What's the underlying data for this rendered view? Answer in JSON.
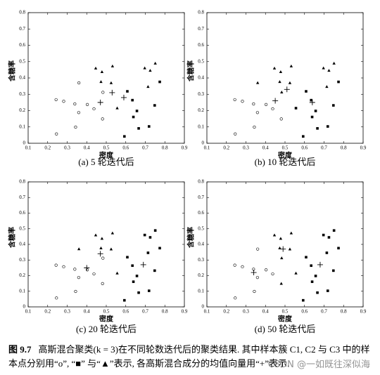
{
  "chart_data": [
    {
      "type": "scatter",
      "caption": "(a) 5 轮迭代后",
      "xlabel": "密度",
      "ylabel": "含糖率",
      "color": "#000000",
      "xlim": [
        0.1,
        0.9
      ],
      "ylim": [
        0,
        0.8
      ],
      "xticks": [
        0.1,
        0.2,
        0.3,
        0.4,
        0.5,
        0.6,
        0.7,
        0.8,
        0.9
      ],
      "yticks": [
        0,
        0.1,
        0.2,
        0.3,
        0.4,
        0.5,
        0.6,
        0.7,
        0.8
      ],
      "series": [
        {
          "marker": "circle",
          "x": [
            0.243,
            0.282,
            0.245,
            0.343,
            0.339,
            0.359,
            0.36,
            0.403,
            0.437,
            0.481,
            0.483
          ],
          "values": [
            0.267,
            0.257,
            0.057,
            0.099,
            0.241,
            0.188,
            0.37,
            0.237,
            0.211,
            0.149,
            0.312
          ]
        },
        {
          "marker": "square",
          "x": [
            0.634,
            0.608,
            0.639,
            0.657,
            0.666,
            0.719,
            0.593,
            0.748,
            0.774
          ],
          "values": [
            0.264,
            0.318,
            0.161,
            0.198,
            0.091,
            0.103,
            0.042,
            0.232,
            0.376
          ]
        },
        {
          "marker": "triangle",
          "x": [
            0.446,
            0.473,
            0.478,
            0.525,
            0.532,
            0.556,
            0.697,
            0.751,
            0.725,
            0.714
          ],
          "values": [
            0.459,
            0.376,
            0.437,
            0.369,
            0.472,
            0.215,
            0.46,
            0.489,
            0.445,
            0.346
          ]
        },
        {
          "marker": "plus",
          "x": [
            0.47,
            0.53,
            0.59
          ],
          "values": [
            0.25,
            0.31,
            0.28
          ]
        }
      ]
    },
    {
      "type": "scatter",
      "caption": "(b) 10 轮迭代后",
      "xlabel": "密度",
      "ylabel": "含糖率",
      "color": "#000000",
      "xlim": [
        0.1,
        0.9
      ],
      "ylim": [
        0,
        0.8
      ],
      "xticks": [
        0.1,
        0.2,
        0.3,
        0.4,
        0.5,
        0.6,
        0.7,
        0.8,
        0.9
      ],
      "yticks": [
        0,
        0.1,
        0.2,
        0.3,
        0.4,
        0.5,
        0.6,
        0.7,
        0.8
      ],
      "series": [
        {
          "marker": "circle",
          "x": [
            0.243,
            0.282,
            0.245,
            0.343,
            0.339,
            0.359,
            0.403,
            0.437,
            0.481
          ],
          "values": [
            0.267,
            0.257,
            0.057,
            0.099,
            0.241,
            0.188,
            0.237,
            0.211,
            0.149
          ]
        },
        {
          "marker": "square",
          "x": [
            0.634,
            0.608,
            0.639,
            0.657,
            0.666,
            0.719,
            0.593,
            0.748,
            0.556,
            0.774
          ],
          "values": [
            0.264,
            0.318,
            0.161,
            0.198,
            0.091,
            0.103,
            0.042,
            0.232,
            0.215,
            0.376
          ]
        },
        {
          "marker": "triangle",
          "x": [
            0.36,
            0.446,
            0.473,
            0.478,
            0.483,
            0.525,
            0.532,
            0.697,
            0.751,
            0.725,
            0.714
          ],
          "values": [
            0.37,
            0.459,
            0.376,
            0.437,
            0.312,
            0.369,
            0.472,
            0.46,
            0.489,
            0.445,
            0.346
          ]
        },
        {
          "marker": "plus",
          "x": [
            0.45,
            0.51,
            0.64
          ],
          "values": [
            0.26,
            0.33,
            0.25
          ]
        }
      ]
    },
    {
      "type": "scatter",
      "caption": "(c) 20 轮迭代后",
      "xlabel": "密度",
      "ylabel": "含糖率",
      "color": "#000000",
      "xlim": [
        0.1,
        0.9
      ],
      "ylim": [
        0,
        0.8
      ],
      "xticks": [
        0.1,
        0.2,
        0.3,
        0.4,
        0.5,
        0.6,
        0.7,
        0.8,
        0.9
      ],
      "yticks": [
        0,
        0.1,
        0.2,
        0.3,
        0.4,
        0.5,
        0.6,
        0.7,
        0.8
      ],
      "series": [
        {
          "marker": "circle",
          "x": [
            0.243,
            0.282,
            0.245,
            0.343,
            0.339,
            0.359,
            0.403,
            0.437,
            0.481,
            0.483
          ],
          "values": [
            0.267,
            0.257,
            0.057,
            0.099,
            0.241,
            0.188,
            0.237,
            0.211,
            0.149,
            0.312
          ]
        },
        {
          "marker": "square",
          "x": [
            0.634,
            0.608,
            0.639,
            0.657,
            0.666,
            0.719,
            0.593,
            0.748,
            0.774,
            0.697,
            0.751,
            0.725,
            0.714
          ],
          "values": [
            0.264,
            0.318,
            0.161,
            0.198,
            0.091,
            0.103,
            0.042,
            0.232,
            0.376,
            0.46,
            0.489,
            0.445,
            0.346
          ]
        },
        {
          "marker": "triangle",
          "x": [
            0.36,
            0.446,
            0.473,
            0.478,
            0.525,
            0.532,
            0.556
          ],
          "values": [
            0.37,
            0.459,
            0.376,
            0.437,
            0.369,
            0.472,
            0.215
          ]
        },
        {
          "marker": "plus",
          "x": [
            0.4,
            0.47,
            0.69
          ],
          "values": [
            0.25,
            0.34,
            0.27
          ]
        }
      ]
    },
    {
      "type": "scatter",
      "caption": "(d) 50 轮迭代后",
      "xlabel": "密度",
      "ylabel": "含糖率",
      "color": "#000000",
      "xlim": [
        0.1,
        0.9
      ],
      "ylim": [
        0,
        0.8
      ],
      "xticks": [
        0.1,
        0.2,
        0.3,
        0.4,
        0.5,
        0.6,
        0.7,
        0.8,
        0.9
      ],
      "yticks": [
        0,
        0.1,
        0.2,
        0.3,
        0.4,
        0.5,
        0.6,
        0.7,
        0.8
      ],
      "series": [
        {
          "marker": "circle",
          "x": [
            0.243,
            0.282,
            0.245,
            0.343,
            0.339,
            0.359,
            0.403,
            0.437,
            0.36
          ],
          "values": [
            0.267,
            0.257,
            0.057,
            0.099,
            0.241,
            0.188,
            0.237,
            0.211,
            0.37
          ]
        },
        {
          "marker": "square",
          "x": [
            0.634,
            0.608,
            0.639,
            0.657,
            0.666,
            0.719,
            0.593,
            0.748,
            0.774,
            0.697,
            0.751,
            0.725,
            0.714
          ],
          "values": [
            0.264,
            0.318,
            0.161,
            0.198,
            0.091,
            0.103,
            0.042,
            0.232,
            0.376,
            0.46,
            0.489,
            0.445,
            0.346
          ]
        },
        {
          "marker": "triangle",
          "x": [
            0.446,
            0.473,
            0.478,
            0.525,
            0.532,
            0.556,
            0.483,
            0.481
          ],
          "values": [
            0.459,
            0.376,
            0.437,
            0.369,
            0.472,
            0.215,
            0.312,
            0.149
          ]
        },
        {
          "marker": "plus",
          "x": [
            0.34,
            0.49,
            0.68
          ],
          "values": [
            0.22,
            0.37,
            0.27
          ]
        }
      ]
    }
  ],
  "figure_caption": {
    "label": "图 9.7",
    "text": "高斯混合聚类(k = 3)在不同轮数迭代后的聚类结果. 其中样本簇 C1, C2 与 C3 中的样本点分别用“o”, “■” 与“▲”表示, 各高斯混合成分的均值向量用“+”表示."
  },
  "watermark": "CSDN @一如既往深似海"
}
